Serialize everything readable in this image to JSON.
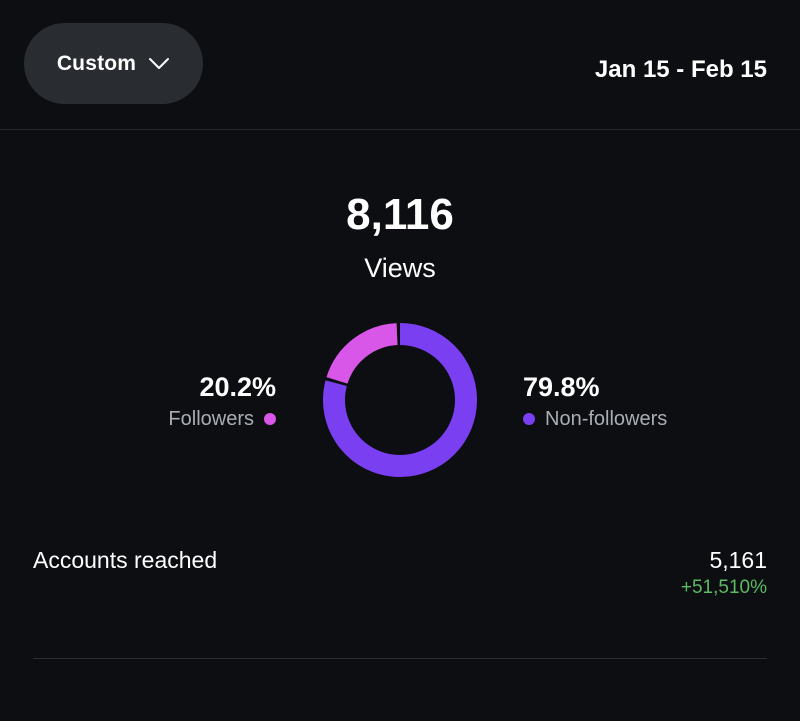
{
  "header": {
    "range_dropdown_label": "Custom",
    "date_range": "Jan 15 - Feb 15"
  },
  "views": {
    "count": "8,116",
    "label": "Views"
  },
  "breakdown": {
    "followers": {
      "value": "20.2%",
      "label": "Followers",
      "fraction": 0.202,
      "color": "#d957e8"
    },
    "non_followers": {
      "value": "79.8%",
      "label": "Non-followers",
      "fraction": 0.798,
      "color": "#7b3ff2"
    }
  },
  "metrics": [
    {
      "label": "Accounts reached",
      "value": "5,161",
      "change": "+51,510%",
      "change_color": "#5cba62"
    }
  ],
  "icons": {
    "dropdown": "chevron-down-icon"
  }
}
